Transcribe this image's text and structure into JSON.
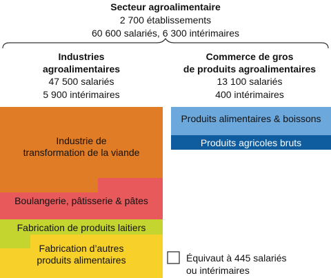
{
  "sector": {
    "title": "Secteur agroalimentaire",
    "establishments": "2 700 établissements",
    "employees": "60 600 salariés, 6 300 intérimaires"
  },
  "industries": {
    "title_line1": "Industries",
    "title_line2": "agroalimentaires",
    "employees": "47 500 salariés",
    "temps": "5 900 intérimaires"
  },
  "commerce": {
    "title_line1": "Commerce de gros",
    "title_line2": "de produits agroalimentaires",
    "employees": "13 100 salariés",
    "temps": "400 intérimaires"
  },
  "blocks": {
    "viande_line1": "Industrie de",
    "viande_line2": "transformation de la viande",
    "boulangerie": "Boulangerie, pâtisserie & pâtes",
    "laitiers": "Fabrication de produits laitiers",
    "autres_line1": "Fabrication d’autres",
    "autres_line2": "produits alimentaires",
    "aliments_boissons": "Produits alimentaires & boissons",
    "agricoles": "Produits agricoles bruts"
  },
  "legend": {
    "line1": "Équivaut à 445 salariés",
    "line2": "ou intérimaires"
  },
  "colors": {
    "viande": "#e07b26",
    "boulangerie": "#e8595c",
    "laitiers": "#c4d52f",
    "autres": "#f7d02a",
    "aliments_boissons": "#6ca8dc",
    "agricoles": "#0f5c9e"
  }
}
